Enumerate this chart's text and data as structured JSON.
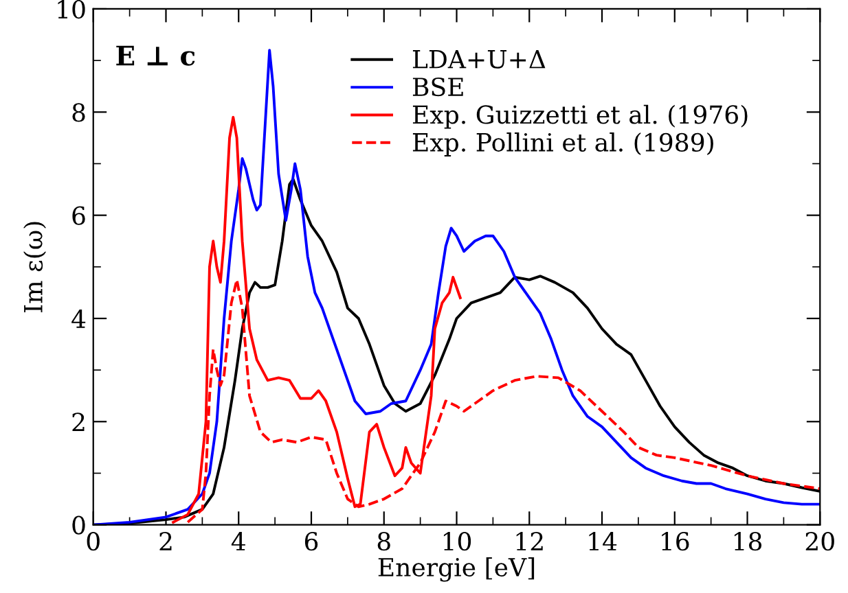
{
  "chart_data": {
    "type": "line",
    "xlabel": "Energie [eV]",
    "ylabel": "Im ε(ω)",
    "annotations": [
      "E ⊥ c"
    ],
    "xlim": [
      0,
      20
    ],
    "ylim": [
      0,
      10
    ],
    "xticks": [
      0,
      {
        "value": 1,
        "label": null
      },
      2,
      {
        "value": 3,
        "label": null
      },
      4,
      {
        "value": 5,
        "label": null
      },
      6,
      {
        "value": 7,
        "label": null
      },
      8,
      {
        "value": 9,
        "label": null
      },
      10,
      {
        "value": 11,
        "label": null
      },
      12,
      {
        "value": 13,
        "label": null
      },
      14,
      {
        "value": 15,
        "label": null
      },
      16,
      {
        "value": 17,
        "label": null
      },
      18,
      {
        "value": 19,
        "label": null
      },
      20
    ],
    "yticks": [
      0,
      {
        "value": 1,
        "label": null
      },
      2,
      {
        "value": 3,
        "label": null
      },
      4,
      {
        "value": 5,
        "label": null
      },
      6,
      {
        "value": 7,
        "label": null
      },
      8,
      {
        "value": 9,
        "label": null
      },
      10
    ],
    "grid": false,
    "legend": "top right",
    "marker": "none",
    "series": [
      {
        "name": "LDA+U+Δ",
        "color": "#000000",
        "line_style": "solid",
        "x": [
          0,
          1,
          2,
          2.5,
          3,
          3.3,
          3.6,
          3.9,
          4.1,
          4.3,
          4.45,
          4.6,
          4.8,
          5.0,
          5.2,
          5.4,
          5.5,
          5.7,
          6.0,
          6.3,
          6.7,
          7.0,
          7.3,
          7.6,
          8.0,
          8.3,
          8.6,
          9.0,
          9.4,
          9.8,
          10.0,
          10.4,
          10.8,
          11.2,
          11.6,
          12.0,
          12.3,
          12.7,
          13.2,
          13.6,
          14.0,
          14.4,
          14.8,
          15.2,
          15.6,
          16.0,
          16.4,
          16.8,
          17.2,
          17.6,
          18.0,
          18.5,
          19.0,
          19.5,
          20
        ],
        "values": [
          0,
          0.03,
          0.1,
          0.15,
          0.3,
          0.6,
          1.5,
          2.8,
          3.8,
          4.5,
          4.7,
          4.6,
          4.6,
          4.65,
          5.5,
          6.6,
          6.7,
          6.3,
          5.8,
          5.5,
          4.9,
          4.2,
          4.0,
          3.5,
          2.7,
          2.35,
          2.2,
          2.35,
          2.9,
          3.6,
          4.0,
          4.3,
          4.4,
          4.5,
          4.8,
          4.75,
          4.82,
          4.7,
          4.5,
          4.2,
          3.8,
          3.5,
          3.3,
          2.8,
          2.3,
          1.9,
          1.6,
          1.35,
          1.2,
          1.1,
          0.95,
          0.85,
          0.8,
          0.72,
          0.65
        ]
      },
      {
        "name": "BSE",
        "color": "#0000ff",
        "line_style": "solid",
        "x": [
          0,
          1,
          2,
          2.6,
          3.0,
          3.2,
          3.4,
          3.6,
          3.8,
          4.0,
          4.1,
          4.2,
          4.4,
          4.5,
          4.6,
          4.75,
          4.85,
          4.95,
          5.1,
          5.3,
          5.45,
          5.55,
          5.7,
          5.9,
          6.1,
          6.3,
          6.6,
          6.9,
          7.2,
          7.5,
          7.9,
          8.2,
          8.6,
          9.0,
          9.3,
          9.5,
          9.7,
          9.85,
          10.0,
          10.2,
          10.5,
          10.8,
          11.0,
          11.3,
          11.6,
          12.0,
          12.3,
          12.6,
          12.9,
          13.2,
          13.6,
          14.0,
          14.4,
          14.8,
          15.2,
          15.7,
          16.2,
          16.6,
          17.0,
          17.4,
          18.0,
          18.5,
          19.0,
          19.5,
          20
        ],
        "values": [
          0,
          0.05,
          0.15,
          0.3,
          0.6,
          1.0,
          2.0,
          4.0,
          5.5,
          6.5,
          7.1,
          6.9,
          6.3,
          6.1,
          6.2,
          8.0,
          9.2,
          8.5,
          6.8,
          5.9,
          6.5,
          7.0,
          6.5,
          5.2,
          4.5,
          4.2,
          3.6,
          3.0,
          2.4,
          2.15,
          2.2,
          2.35,
          2.4,
          3.0,
          3.5,
          4.5,
          5.4,
          5.75,
          5.6,
          5.3,
          5.5,
          5.6,
          5.6,
          5.3,
          4.8,
          4.4,
          4.1,
          3.6,
          3.0,
          2.5,
          2.1,
          1.9,
          1.6,
          1.3,
          1.1,
          0.95,
          0.85,
          0.8,
          0.8,
          0.7,
          0.6,
          0.5,
          0.43,
          0.4,
          0.4
        ]
      },
      {
        "name": "Exp. Guizzetti et al. (1976)",
        "color": "#ff0000",
        "line_style": "solid",
        "x": [
          2.2,
          2.6,
          2.9,
          3.1,
          3.2,
          3.3,
          3.4,
          3.5,
          3.6,
          3.75,
          3.85,
          3.95,
          4.1,
          4.3,
          4.5,
          4.8,
          5.1,
          5.4,
          5.7,
          6.0,
          6.2,
          6.4,
          6.7,
          7.0,
          7.2,
          7.35,
          7.6,
          7.8,
          8.0,
          8.3,
          8.5,
          8.6,
          8.75,
          9.0,
          9.3,
          9.4,
          9.6,
          9.8,
          9.9,
          10.1
        ],
        "values": [
          0.05,
          0.2,
          0.6,
          2.0,
          5.0,
          5.5,
          5.0,
          4.7,
          5.5,
          7.5,
          7.9,
          7.5,
          5.5,
          3.8,
          3.2,
          2.8,
          2.85,
          2.8,
          2.45,
          2.45,
          2.6,
          2.4,
          1.8,
          0.9,
          0.35,
          0.4,
          1.8,
          1.95,
          1.5,
          0.95,
          1.1,
          1.5,
          1.2,
          1.0,
          2.5,
          3.8,
          4.3,
          4.5,
          4.8,
          4.4
        ]
      },
      {
        "name": "Exp. Pollini et al. (1989)",
        "color": "#ff0000",
        "line_style": "dashed",
        "x": [
          2.6,
          3.0,
          3.1,
          3.2,
          3.3,
          3.4,
          3.5,
          3.6,
          3.8,
          3.95,
          4.1,
          4.3,
          4.6,
          4.9,
          5.2,
          5.6,
          6.0,
          6.4,
          6.7,
          7.0,
          7.3,
          7.6,
          8.0,
          8.5,
          9.0,
          9.4,
          9.7,
          10.0,
          10.2,
          10.6,
          11.0,
          11.6,
          12.2,
          12.8,
          13.4,
          14.0,
          14.6,
          15.0,
          15.5,
          16.0,
          17.0,
          18.0,
          19.0,
          20
        ],
        "values": [
          0.05,
          0.3,
          1.0,
          2.5,
          3.4,
          3.0,
          2.7,
          2.9,
          4.3,
          4.75,
          4.2,
          2.5,
          1.8,
          1.6,
          1.65,
          1.6,
          1.7,
          1.65,
          1.0,
          0.5,
          0.35,
          0.4,
          0.5,
          0.7,
          1.2,
          1.8,
          2.4,
          2.3,
          2.2,
          2.4,
          2.6,
          2.8,
          2.88,
          2.85,
          2.6,
          2.2,
          1.8,
          1.5,
          1.35,
          1.3,
          1.15,
          0.95,
          0.8,
          0.7
        ]
      }
    ]
  }
}
